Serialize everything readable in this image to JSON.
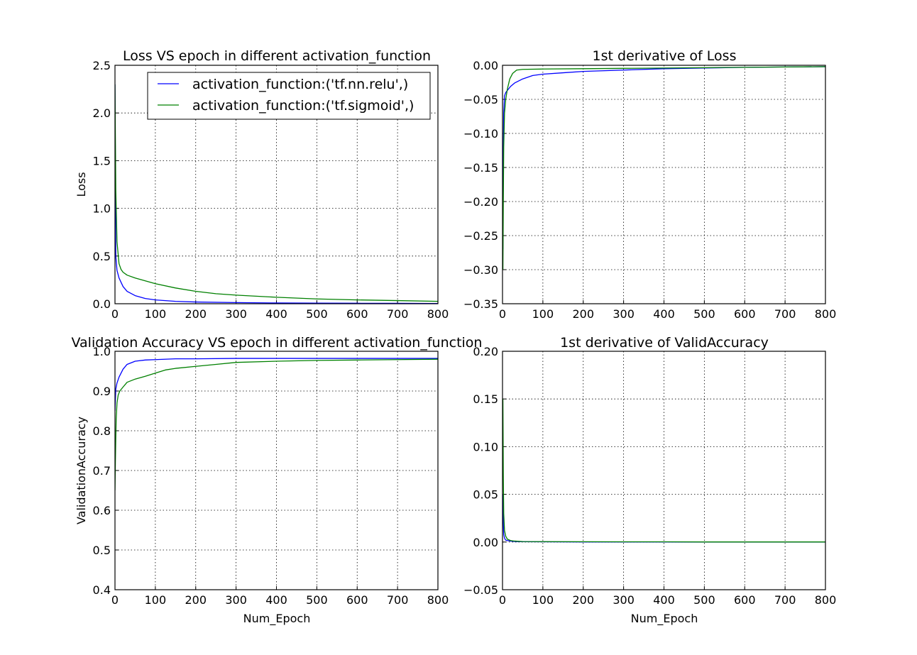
{
  "chart_data": [
    {
      "id": "loss",
      "type": "line",
      "title": "Loss VS epoch in different activation_function",
      "xlabel": "",
      "ylabel": "Loss",
      "xlim": [
        0,
        800
      ],
      "ylim": [
        0,
        2.5
      ],
      "xticks": [
        0,
        100,
        200,
        300,
        400,
        500,
        600,
        700,
        800
      ],
      "yticks": [
        "0.0",
        "0.5",
        "1.0",
        "1.5",
        "2.0",
        "2.5"
      ],
      "grid": true,
      "legend": {
        "placement": "top-right",
        "entries": [
          "activation_function:('tf.nn.relu',)",
          "activation_function:('tf.sigmoid',)"
        ]
      },
      "series": [
        {
          "name": "activation_function:('tf.nn.relu',)",
          "color": "#0000ff",
          "x": [
            0,
            2,
            5,
            10,
            20,
            30,
            50,
            75,
            100,
            150,
            200,
            300,
            400,
            500,
            600,
            700,
            800
          ],
          "y": [
            2.3,
            0.5,
            0.35,
            0.27,
            0.18,
            0.13,
            0.085,
            0.055,
            0.04,
            0.025,
            0.018,
            0.012,
            0.008,
            0.006,
            0.005,
            0.004,
            0.003
          ]
        },
        {
          "name": "activation_function:('tf.sigmoid',)",
          "color": "#008000",
          "x": [
            0,
            2,
            5,
            10,
            15,
            20,
            30,
            50,
            75,
            100,
            150,
            200,
            250,
            300,
            400,
            500,
            600,
            700,
            800
          ],
          "y": [
            2.3,
            1.2,
            0.65,
            0.42,
            0.36,
            0.33,
            0.3,
            0.27,
            0.24,
            0.21,
            0.165,
            0.13,
            0.105,
            0.09,
            0.068,
            0.05,
            0.04,
            0.033,
            0.025
          ]
        }
      ]
    },
    {
      "id": "loss-derivative",
      "type": "line",
      "title": "1st derivative of Loss",
      "xlabel": "",
      "ylabel": "",
      "xlim": [
        0,
        800
      ],
      "ylim": [
        -0.35,
        0
      ],
      "xticks": [
        0,
        100,
        200,
        300,
        400,
        500,
        600,
        700,
        800
      ],
      "yticks": [
        "0.00",
        "−0.05",
        "−0.10",
        "−0.15",
        "−0.20",
        "−0.25",
        "−0.30",
        "−0.35"
      ],
      "grid": true,
      "series": [
        {
          "name": "",
          "color": "#0000ff",
          "x": [
            1,
            2,
            3,
            5,
            8,
            12,
            20,
            30,
            50,
            75,
            100,
            150,
            200,
            300,
            400,
            500,
            600,
            700,
            800
          ],
          "y": [
            -0.27,
            -0.12,
            -0.07,
            -0.045,
            -0.04,
            -0.037,
            -0.031,
            -0.026,
            -0.02,
            -0.015,
            -0.013,
            -0.011,
            -0.009,
            -0.007,
            -0.005,
            -0.004,
            -0.003,
            -0.0025,
            -0.002
          ]
        },
        {
          "name": "",
          "color": "#008000",
          "x": [
            1,
            2,
            3,
            5,
            8,
            12,
            18,
            25,
            35,
            50,
            100,
            200,
            300,
            400,
            500,
            600,
            700,
            800
          ],
          "y": [
            -0.3,
            -0.2,
            -0.12,
            -0.07,
            -0.05,
            -0.035,
            -0.02,
            -0.012,
            -0.007,
            -0.006,
            -0.0055,
            -0.005,
            -0.0045,
            -0.004,
            -0.0035,
            -0.003,
            -0.0025,
            -0.002
          ]
        }
      ]
    },
    {
      "id": "validation-accuracy",
      "type": "line",
      "title": "Validation Accuracy VS epoch in different activation_function",
      "xlabel": "Num_Epoch",
      "ylabel": "ValidationAccuracy",
      "xlim": [
        0,
        800
      ],
      "ylim": [
        0.4,
        1.0
      ],
      "xticks": [
        0,
        100,
        200,
        300,
        400,
        500,
        600,
        700,
        800
      ],
      "yticks": [
        "0.4",
        "0.5",
        "0.6",
        "0.7",
        "0.8",
        "0.9",
        "1.0"
      ],
      "grid": true,
      "series": [
        {
          "name": "",
          "color": "#0000ff",
          "x": [
            0,
            2,
            5,
            10,
            20,
            30,
            50,
            75,
            100,
            150,
            200,
            300,
            400,
            500,
            600,
            700,
            800
          ],
          "y": [
            0.85,
            0.905,
            0.92,
            0.935,
            0.955,
            0.967,
            0.975,
            0.978,
            0.979,
            0.981,
            0.981,
            0.982,
            0.982,
            0.982,
            0.982,
            0.982,
            0.982
          ]
        },
        {
          "name": "",
          "color": "#008000",
          "x": [
            0,
            1,
            2,
            3,
            5,
            8,
            12,
            20,
            30,
            50,
            75,
            100,
            125,
            150,
            200,
            250,
            300,
            400,
            500,
            600,
            700,
            800
          ],
          "y": [
            0.65,
            0.72,
            0.78,
            0.83,
            0.87,
            0.89,
            0.9,
            0.91,
            0.922,
            0.93,
            0.937,
            0.945,
            0.953,
            0.957,
            0.962,
            0.967,
            0.972,
            0.975,
            0.977,
            0.978,
            0.979,
            0.98
          ]
        }
      ]
    },
    {
      "id": "accuracy-derivative",
      "type": "line",
      "title": "1st derivative of ValidAccuracy",
      "xlabel": "Num_Epoch",
      "ylabel": "",
      "xlim": [
        0,
        800
      ],
      "ylim": [
        -0.05,
        0.2
      ],
      "xticks": [
        0,
        100,
        200,
        300,
        400,
        500,
        600,
        700,
        800
      ],
      "yticks": [
        "−0.05",
        "0.00",
        "0.05",
        "0.10",
        "0.15",
        "0.20"
      ],
      "grid": true,
      "series": [
        {
          "name": "",
          "color": "#0000ff",
          "x": [
            1,
            2,
            3,
            5,
            8,
            12,
            20,
            30,
            50,
            100,
            200,
            300,
            400,
            500,
            600,
            700,
            800
          ],
          "y": [
            0.05,
            0.02,
            0.008,
            0.004,
            0.002,
            0.0015,
            0.001,
            0.0005,
            0.0003,
            0.0002,
            0.0001,
            0.0001,
            0.0001,
            0.0,
            0.0,
            0.0,
            0.0
          ]
        },
        {
          "name": "",
          "color": "#008000",
          "x": [
            1,
            2,
            3,
            5,
            8,
            12,
            20,
            30,
            50,
            100,
            200,
            300,
            400,
            500,
            600,
            700,
            800
          ],
          "y": [
            0.15,
            0.07,
            0.03,
            0.012,
            0.006,
            0.003,
            0.0015,
            0.001,
            0.0005,
            0.0004,
            0.0003,
            0.0002,
            0.0002,
            0.0001,
            0.0001,
            0.0001,
            0.0001
          ]
        }
      ]
    }
  ]
}
